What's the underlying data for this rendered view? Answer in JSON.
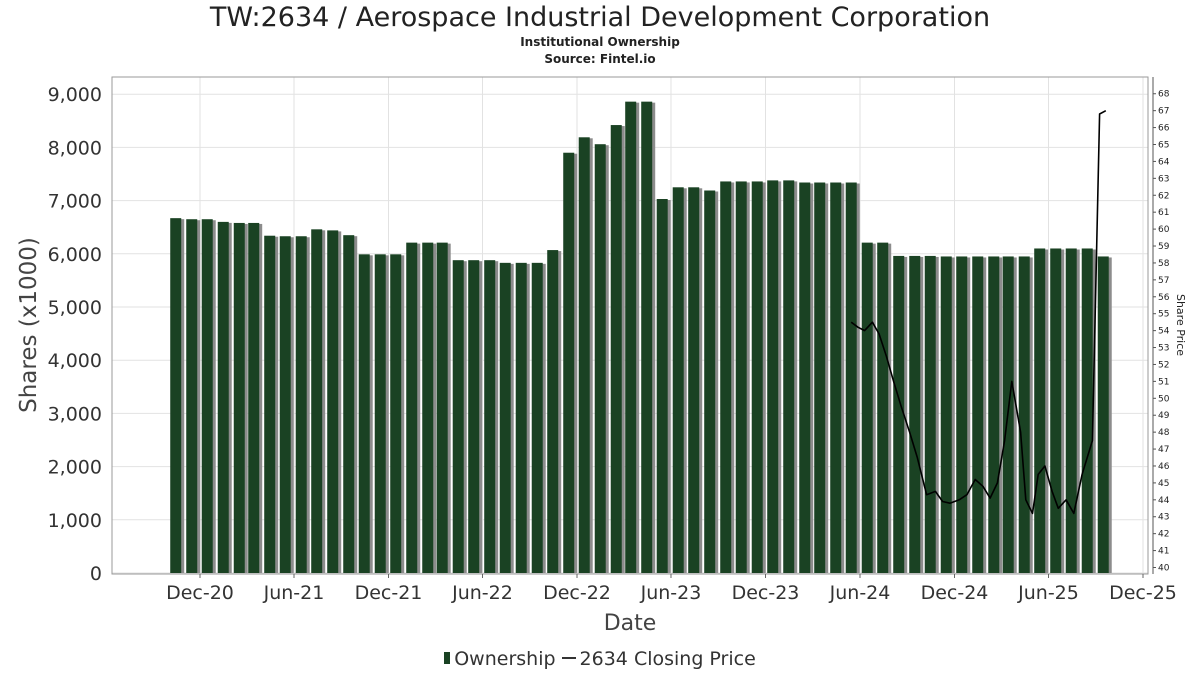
{
  "header": {
    "title": "TW:2634 / Aerospace Industrial Development Corporation",
    "subtitle": "Institutional Ownership",
    "source": "Source: Fintel.io"
  },
  "legend": {
    "ownership_label": "Ownership",
    "price_label": "2634 Closing Price"
  },
  "colors": {
    "bar": "#1a4223",
    "bar_shadow": "#8c8c8c",
    "price_line": "#000000",
    "grid": "#e2e2e2"
  },
  "chart_data": {
    "type": "bar",
    "title": "TW:2634 / Aerospace Industrial Development Corporation",
    "xlabel": "Date",
    "ylabel": "Shares (x1000)",
    "y2label": "Share Price",
    "ylim": [
      0,
      9300
    ],
    "y2lim": [
      39.7,
      68.3
    ],
    "y_ticks": [
      "0",
      "1,000",
      "2,000",
      "3,000",
      "4,000",
      "5,000",
      "6,000",
      "7,000",
      "8,000",
      "9,000"
    ],
    "y2_ticks": [
      "40",
      "41",
      "42",
      "43",
      "44",
      "45",
      "46",
      "47",
      "48",
      "49",
      "50",
      "51",
      "52",
      "53",
      "54",
      "55",
      "56",
      "57",
      "58",
      "59",
      "60",
      "61",
      "62",
      "63",
      "64",
      "65",
      "66",
      "67",
      "68"
    ],
    "x_ticks": [
      {
        "label": "Dec-20",
        "date": "2020-12-01"
      },
      {
        "label": "Jun-21",
        "date": "2021-06-01"
      },
      {
        "label": "Dec-21",
        "date": "2021-12-01"
      },
      {
        "label": "Jun-22",
        "date": "2022-06-01"
      },
      {
        "label": "Dec-22",
        "date": "2022-12-01"
      },
      {
        "label": "Jun-23",
        "date": "2023-06-01"
      },
      {
        "label": "Dec-23",
        "date": "2023-12-01"
      },
      {
        "label": "Jun-24",
        "date": "2024-06-01"
      },
      {
        "label": "Dec-24",
        "date": "2024-12-01"
      },
      {
        "label": "Jun-25",
        "date": "2025-06-01"
      },
      {
        "label": "Dec-25",
        "date": "2025-12-01"
      }
    ],
    "legend_position": "bottom",
    "grid": true,
    "series": [
      {
        "name": "Ownership",
        "type": "bar",
        "points": [
          {
            "date": "2020-10-15",
            "value": 6670
          },
          {
            "date": "2020-11-15",
            "value": 6650
          },
          {
            "date": "2020-12-15",
            "value": 6650
          },
          {
            "date": "2021-01-15",
            "value": 6600
          },
          {
            "date": "2021-02-15",
            "value": 6580
          },
          {
            "date": "2021-03-15",
            "value": 6580
          },
          {
            "date": "2021-04-15",
            "value": 6340
          },
          {
            "date": "2021-05-15",
            "value": 6330
          },
          {
            "date": "2021-06-15",
            "value": 6330
          },
          {
            "date": "2021-07-15",
            "value": 6460
          },
          {
            "date": "2021-08-15",
            "value": 6440
          },
          {
            "date": "2021-09-15",
            "value": 6350
          },
          {
            "date": "2021-10-15",
            "value": 5990
          },
          {
            "date": "2021-11-15",
            "value": 5990
          },
          {
            "date": "2021-12-15",
            "value": 5990
          },
          {
            "date": "2022-01-15",
            "value": 6210
          },
          {
            "date": "2022-02-15",
            "value": 6210
          },
          {
            "date": "2022-03-15",
            "value": 6210
          },
          {
            "date": "2022-04-15",
            "value": 5880
          },
          {
            "date": "2022-05-15",
            "value": 5880
          },
          {
            "date": "2022-06-15",
            "value": 5880
          },
          {
            "date": "2022-07-15",
            "value": 5830
          },
          {
            "date": "2022-08-15",
            "value": 5830
          },
          {
            "date": "2022-09-15",
            "value": 5830
          },
          {
            "date": "2022-10-15",
            "value": 6070
          },
          {
            "date": "2022-11-15",
            "value": 7900
          },
          {
            "date": "2022-12-15",
            "value": 8190
          },
          {
            "date": "2023-01-15",
            "value": 8060
          },
          {
            "date": "2023-02-15",
            "value": 8420
          },
          {
            "date": "2023-03-15",
            "value": 8860
          },
          {
            "date": "2023-04-15",
            "value": 8860
          },
          {
            "date": "2023-05-15",
            "value": 7030
          },
          {
            "date": "2023-06-15",
            "value": 7250
          },
          {
            "date": "2023-07-15",
            "value": 7250
          },
          {
            "date": "2023-08-15",
            "value": 7190
          },
          {
            "date": "2023-09-15",
            "value": 7360
          },
          {
            "date": "2023-10-15",
            "value": 7360
          },
          {
            "date": "2023-11-15",
            "value": 7360
          },
          {
            "date": "2023-12-15",
            "value": 7380
          },
          {
            "date": "2024-01-15",
            "value": 7380
          },
          {
            "date": "2024-02-15",
            "value": 7340
          },
          {
            "date": "2024-03-15",
            "value": 7340
          },
          {
            "date": "2024-04-15",
            "value": 7340
          },
          {
            "date": "2024-05-15",
            "value": 7340
          },
          {
            "date": "2024-06-15",
            "value": 6210
          },
          {
            "date": "2024-07-15",
            "value": 6210
          },
          {
            "date": "2024-08-15",
            "value": 5960
          },
          {
            "date": "2024-09-15",
            "value": 5960
          },
          {
            "date": "2024-10-15",
            "value": 5960
          },
          {
            "date": "2024-11-15",
            "value": 5950
          },
          {
            "date": "2024-12-15",
            "value": 5950
          },
          {
            "date": "2025-01-15",
            "value": 5950
          },
          {
            "date": "2025-02-15",
            "value": 5950
          },
          {
            "date": "2025-03-15",
            "value": 5950
          },
          {
            "date": "2025-04-15",
            "value": 5950
          },
          {
            "date": "2025-05-15",
            "value": 6100
          },
          {
            "date": "2025-06-15",
            "value": 6100
          },
          {
            "date": "2025-07-15",
            "value": 6100
          },
          {
            "date": "2025-08-15",
            "value": 6100
          },
          {
            "date": "2025-09-15",
            "value": 5950
          }
        ]
      },
      {
        "name": "2634 Closing Price",
        "type": "line",
        "axis": "right",
        "points": [
          {
            "date": "2024-05-15",
            "value": 54.5
          },
          {
            "date": "2024-05-28",
            "value": 54.2
          },
          {
            "date": "2024-06-10",
            "value": 54.0
          },
          {
            "date": "2024-06-25",
            "value": 54.5
          },
          {
            "date": "2024-07-08",
            "value": 53.8
          },
          {
            "date": "2024-07-22",
            "value": 52.5
          },
          {
            "date": "2024-08-05",
            "value": 51.0
          },
          {
            "date": "2024-08-20",
            "value": 49.5
          },
          {
            "date": "2024-09-05",
            "value": 48.0
          },
          {
            "date": "2024-09-20",
            "value": 46.5
          },
          {
            "date": "2024-10-08",
            "value": 44.3
          },
          {
            "date": "2024-10-25",
            "value": 44.5
          },
          {
            "date": "2024-11-08",
            "value": 43.9
          },
          {
            "date": "2024-11-22",
            "value": 43.8
          },
          {
            "date": "2024-12-10",
            "value": 44.0
          },
          {
            "date": "2024-12-25",
            "value": 44.3
          },
          {
            "date": "2025-01-10",
            "value": 45.2
          },
          {
            "date": "2025-01-25",
            "value": 44.8
          },
          {
            "date": "2025-02-08",
            "value": 44.1
          },
          {
            "date": "2025-02-22",
            "value": 45.0
          },
          {
            "date": "2025-03-08",
            "value": 47.5
          },
          {
            "date": "2025-03-22",
            "value": 51.0
          },
          {
            "date": "2025-04-08",
            "value": 48.0
          },
          {
            "date": "2025-04-18",
            "value": 44.0
          },
          {
            "date": "2025-05-01",
            "value": 43.2
          },
          {
            "date": "2025-05-12",
            "value": 45.5
          },
          {
            "date": "2025-05-25",
            "value": 46.0
          },
          {
            "date": "2025-06-08",
            "value": 44.5
          },
          {
            "date": "2025-06-20",
            "value": 43.5
          },
          {
            "date": "2025-07-05",
            "value": 44.0
          },
          {
            "date": "2025-07-20",
            "value": 43.2
          },
          {
            "date": "2025-08-05",
            "value": 45.5
          },
          {
            "date": "2025-08-25",
            "value": 47.5
          },
          {
            "date": "2025-09-08",
            "value": 66.8
          },
          {
            "date": "2025-09-20",
            "value": 67.0
          }
        ]
      }
    ]
  }
}
